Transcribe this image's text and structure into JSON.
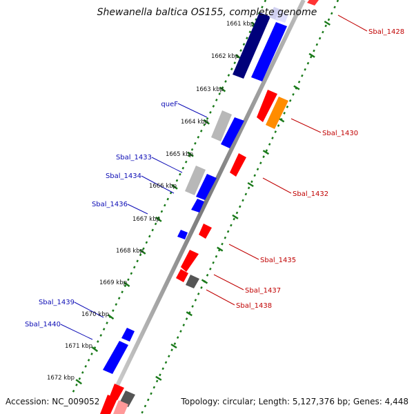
{
  "title": "Shewanella baltica OS155, complete genome",
  "footer": {
    "accession": "Accession: NC_009052",
    "topology": "Topology: circular; Length: 5,127,376 bp; Genes: 4,448"
  },
  "colors": {
    "backbone": "#888888",
    "tick": "#1a7a1a",
    "blue": "#0000ff",
    "navy": "#00007a",
    "red": "#ff0000",
    "orange": "#ff8c00",
    "grey": "#b5b5b5",
    "dark_grey": "#555555",
    "pink": "#ff9999",
    "label_blue": "#0b0bb5",
    "label_red": "#c00000"
  },
  "ruler": {
    "labels": [
      "1661 kbp",
      "1662 kbp",
      "1663 kbp",
      "1664 kbp",
      "1665 kbp",
      "1666 kbp",
      "1667 kbp",
      "1668 kbp",
      "1669 kbp",
      "1670 kbp",
      "1671 kbp",
      "1672 kbp"
    ]
  },
  "gene_labels": {
    "left": [
      "queF",
      "Sbal_1433",
      "Sbal_1434",
      "Sbal_1436",
      "Sbal_1439",
      "Sbal_1440"
    ],
    "right": [
      "Sbal_1428",
      "Sbal_1430",
      "Sbal_1432",
      "Sbal_1435",
      "Sbal_1437",
      "Sbal_1438"
    ]
  }
}
